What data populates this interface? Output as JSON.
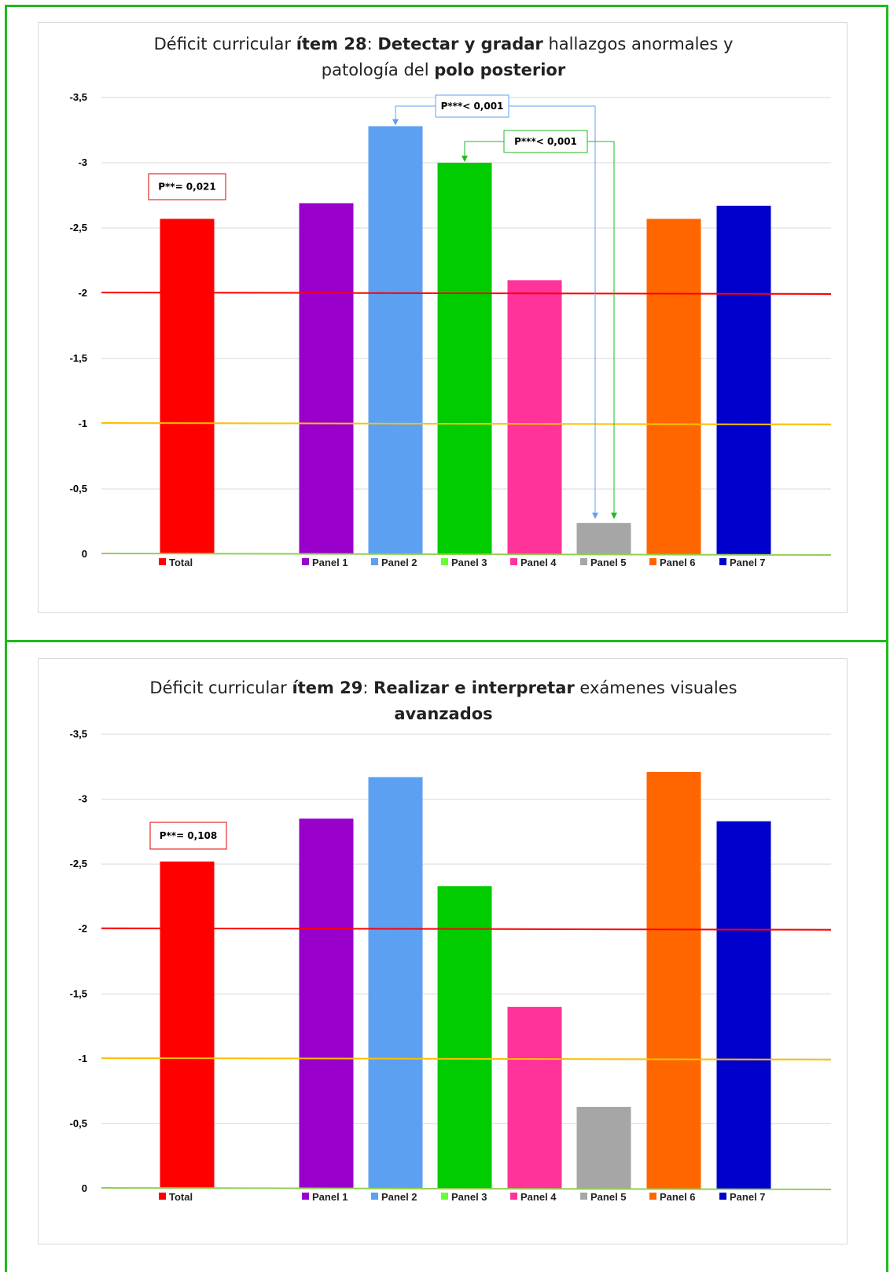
{
  "chart_data": [
    {
      "type": "bar",
      "title": "Déficit curricular ítem 28: Detectar y gradar hallazgos anormales y patología del polo posterior",
      "title_lines": [
        [
          {
            "t": "Déficit curricular ",
            "b": false
          },
          {
            "t": "ítem 28",
            "b": true
          },
          {
            "t": ": ",
            "b": false
          },
          {
            "t": "Detectar y gradar",
            "b": true
          },
          {
            "t": " hallazgos anormales y",
            "b": false
          }
        ],
        [
          {
            "t": "patología del ",
            "b": false
          },
          {
            "t": "polo posterior",
            "b": true
          }
        ]
      ],
      "categories": [
        "Total",
        "Panel 1",
        "Panel 2",
        "Panel 3",
        "Panel 4",
        "Panel 5",
        "Panel 6",
        "Panel 7"
      ],
      "values": [
        -2.57,
        -2.69,
        -3.28,
        -3.0,
        -2.1,
        -0.24,
        -2.57,
        -2.67
      ],
      "colors": [
        "#ff0000",
        "#9900cc",
        "#5ca0f2",
        "#00cc00",
        "#ff3399",
        "#a6a6a6",
        "#ff6600",
        "#0000cc"
      ],
      "legend_colors": [
        "#ff0000",
        "#9900cc",
        "#5ca0f2",
        "#66ff33",
        "#ff3399",
        "#a6a6a6",
        "#ff6600",
        "#0000cc"
      ],
      "ylim": [
        0,
        -3.5
      ],
      "y_reversed": true,
      "yticks": [
        -3.5,
        -3,
        -2.5,
        -2,
        -1.5,
        -1,
        -0.5,
        0
      ],
      "ytick_labels": [
        "-3,5",
        "-3",
        "-2,5",
        "-2",
        "-1,5",
        "-1",
        "-0,5",
        "0"
      ],
      "reference_lines": [
        {
          "value": -2,
          "color": "#ff0000"
        },
        {
          "value": -1,
          "color": "#ffc000"
        },
        {
          "value": 0,
          "color": "#92d050"
        }
      ],
      "grid": true,
      "legend": "bottom",
      "annotations": [
        {
          "text": "P**= 0,021",
          "border": "#e00000"
        },
        {
          "text": "P***< 0,001",
          "border": "#5ca0f2",
          "from": "Panel 2",
          "to": "Panel 5"
        },
        {
          "text": "P***< 0,001",
          "border": "#1fba1f",
          "from": "Panel 3",
          "to": "Panel 5"
        }
      ]
    },
    {
      "type": "bar",
      "title": "Déficit curricular ítem 29: Realizar e interpretar exámenes visuales avanzados",
      "title_lines": [
        [
          {
            "t": "Déficit curricular ",
            "b": false
          },
          {
            "t": "ítem 29",
            "b": true
          },
          {
            "t": ": ",
            "b": false
          },
          {
            "t": "Realizar e interpretar",
            "b": true
          },
          {
            "t": " exámenes visuales",
            "b": false
          }
        ],
        [
          {
            "t": "avanzados",
            "b": true
          }
        ]
      ],
      "categories": [
        "Total",
        "Panel 1",
        "Panel 2",
        "Panel 3",
        "Panel 4",
        "Panel 5",
        "Panel 6",
        "Panel 7"
      ],
      "values": [
        -2.52,
        -2.85,
        -3.17,
        -2.33,
        -1.4,
        -0.63,
        -3.21,
        -2.83
      ],
      "colors": [
        "#ff0000",
        "#9900cc",
        "#5ca0f2",
        "#00cc00",
        "#ff3399",
        "#a6a6a6",
        "#ff6600",
        "#0000cc"
      ],
      "legend_colors": [
        "#ff0000",
        "#9900cc",
        "#5ca0f2",
        "#66ff33",
        "#ff3399",
        "#a6a6a6",
        "#ff6600",
        "#0000cc"
      ],
      "ylim": [
        0,
        -3.5
      ],
      "y_reversed": true,
      "yticks": [
        -3.5,
        -3,
        -2.5,
        -2,
        -1.5,
        -1,
        -0.5,
        0
      ],
      "ytick_labels": [
        "-3,5",
        "-3",
        "-2,5",
        "-2",
        "-1,5",
        "-1",
        "-0,5",
        "0"
      ],
      "reference_lines": [
        {
          "value": -2,
          "color": "#ff0000"
        },
        {
          "value": -1,
          "color": "#ffc000"
        },
        {
          "value": 0,
          "color": "#92d050"
        }
      ],
      "grid": true,
      "legend": "bottom",
      "annotations": [
        {
          "text": "P**= 0,108",
          "border": "#e00000"
        }
      ]
    }
  ]
}
